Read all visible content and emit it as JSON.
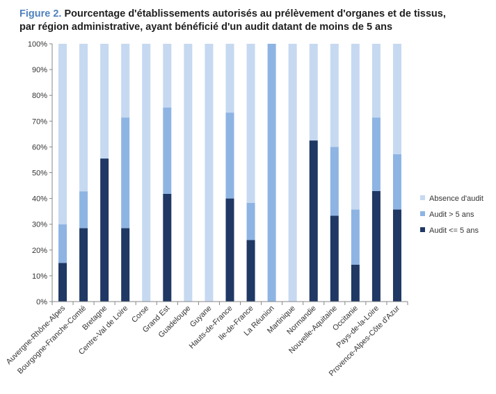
{
  "figure": {
    "label": "Figure 2.",
    "title_line1": "Pourcentage d'établissements autorisés au prélèvement d'organes et de tissus,",
    "title_line2": "par région administrative, ayant bénéficié d'un audit datant de moins de 5 ans"
  },
  "chart_data": {
    "type": "bar",
    "stacked": true,
    "categories": [
      "Auvergne-Rhône-Alpes",
      "Bourgogne-Franche-Comté",
      "Bretagne",
      "Centre-Val de Loire",
      "Corse",
      "Grand Est",
      "Guadeloupe",
      "Guyane",
      "Hauts-de-France",
      "Ile-de-France",
      "La Réunion",
      "Martinique",
      "Normandie",
      "Nouvelle-Aquitaine",
      "Occitanie",
      "Pays-de-la-Loire",
      "Provence-Alpes-Côte d'Azur"
    ],
    "series": [
      {
        "name": "Audit <= 5 ans",
        "color": "#1f3864",
        "values": [
          15,
          28.5,
          55.5,
          28.5,
          0,
          41.8,
          0,
          0,
          40,
          23.9,
          0,
          0,
          62.5,
          33.3,
          14.3,
          42.9,
          35.7
        ]
      },
      {
        "name": "Audit > 5 ans",
        "color": "#8eb4e3",
        "values": [
          15,
          14.3,
          0,
          42.9,
          0,
          33.5,
          0,
          0,
          33.3,
          14.4,
          100,
          0,
          0,
          26.7,
          21.4,
          28.5,
          21.5
        ]
      },
      {
        "name": "Absence d'audit",
        "color": "#c6d9f1",
        "values": [
          70,
          57.2,
          44.5,
          28.6,
          100,
          24.7,
          100,
          100,
          26.7,
          61.7,
          0,
          100,
          37.5,
          40,
          64.3,
          28.6,
          42.8
        ]
      }
    ],
    "yticks": [
      "0%",
      "10%",
      "20%",
      "30%",
      "40%",
      "50%",
      "60%",
      "70%",
      "80%",
      "90%",
      "100%"
    ],
    "ylim": [
      0,
      100
    ],
    "legend_order": [
      "Absence d'audit",
      "Audit > 5 ans",
      "Audit <= 5 ans"
    ],
    "legend_position": "right",
    "grid": false
  }
}
